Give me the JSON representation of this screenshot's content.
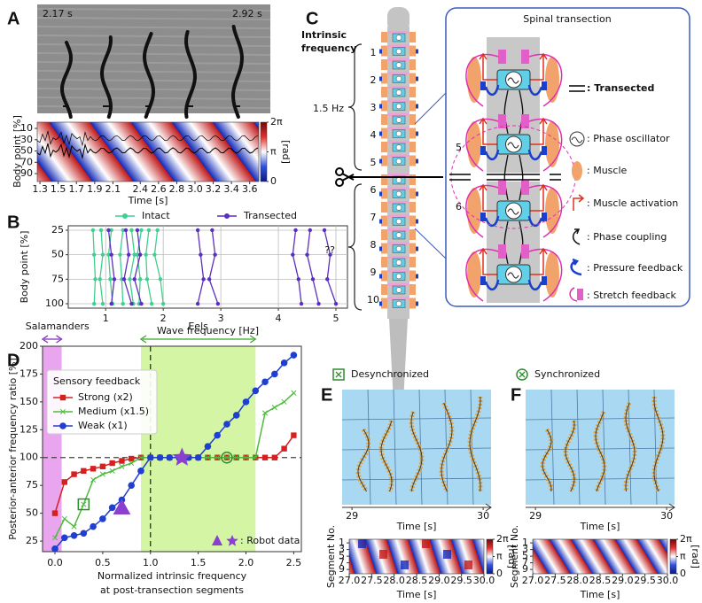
{
  "panel_labels": [
    "A",
    "B",
    "C",
    "D",
    "E",
    "F"
  ],
  "A": {
    "frame_times": [
      "2.17 s",
      "2.92 s"
    ],
    "heatmap": {
      "ylabel": "Body point [%]",
      "yticks": [
        10,
        30,
        50,
        70,
        90
      ],
      "ylim": [
        104,
        -1
      ],
      "xlabel": "Time [s]",
      "xlim": [
        1.27,
        3.7
      ],
      "xticks": [
        1.3,
        1.5,
        1.7,
        1.9,
        2.1,
        2.4,
        2.6,
        2.8,
        {
          "value": 3,
          "label": "3.0"
        },
        3.2,
        3.4,
        3.6
      ],
      "colorbar": {
        "lim": [
          0,
          6.2832
        ],
        "ticks": [
          {
            "value": 6.2832,
            "label": "2π"
          },
          {
            "value": 3.1416,
            "label": "π"
          },
          0
        ],
        "label": "[rad]"
      }
    }
  },
  "chart_data": [
    {
      "type": "line",
      "xlabel": "Wave frequency [Hz]",
      "ylabel": "Body point [%]",
      "xlim": [
        0.35,
        5.2
      ],
      "xticks": [
        1,
        2,
        3,
        4,
        5
      ],
      "ylim": [
        104.5,
        20.5
      ],
      "yticks": [
        25,
        50,
        75,
        100
      ],
      "grid": true,
      "y": [
        25,
        50,
        75,
        100
      ],
      "series": [
        {
          "name": "Intact",
          "color": "#3fcf8e",
          "lines": [
            [
              0.78,
              0.8,
              0.82,
              0.8
            ],
            [
              0.92,
              0.95,
              0.9,
              0.95
            ],
            [
              1.1,
              1.05,
              1.08,
              1.12
            ],
            [
              1.3,
              1.25,
              1.28,
              1.3
            ],
            [
              1.45,
              1.5,
              1.42,
              1.48
            ],
            [
              1.62,
              1.55,
              1.6,
              1.58
            ],
            [
              1.75,
              1.7,
              1.72,
              1.8
            ],
            [
              1.9,
              1.85,
              1.95,
              2.0
            ]
          ]
        },
        {
          "name": "Transected",
          "color": "#5a2fbf",
          "lines": [
            [
              1.05,
              1.1,
              1.15,
              1.1
            ],
            [
              1.35,
              1.4,
              1.32,
              1.45
            ],
            [
              1.55,
              1.6,
              1.5,
              1.62
            ],
            [
              2.6,
              2.65,
              2.7,
              2.6
            ],
            [
              2.85,
              2.9,
              2.8,
              2.95
            ],
            [
              4.3,
              4.25,
              4.35,
              4.4
            ],
            [
              4.55,
              4.5,
              4.6,
              4.7
            ],
            [
              4.8,
              4.9,
              4.85,
              5.0
            ]
          ]
        }
      ]
    },
    {
      "type": "line",
      "legend_title": "Sensory feedback",
      "xlabel_lines": [
        "Normalized intrinsic frequency",
        "at post-transection segments"
      ],
      "ylabel": "Posterior-anterior frequency ratio [%]",
      "xlim": [
        -0.13,
        2.58
      ],
      "xticks": [
        {
          "value": 0,
          "label": "0.0"
        },
        0.5,
        {
          "value": 1,
          "label": "1.0"
        },
        1.5,
        {
          "value": 2,
          "label": "2.0"
        },
        2.5
      ],
      "ylim": [
        15.5,
        200
      ],
      "yticks": [
        25,
        50,
        75,
        100,
        125,
        150,
        175,
        200
      ],
      "ref_x": 1,
      "ref_y": 100,
      "regions": [
        {
          "label": "Salamanders",
          "xrange": [
            -0.13,
            0.07
          ],
          "color": "#e9a6ee",
          "text_color": "#7a2fbf"
        },
        {
          "label": "Eels",
          "xrange": [
            0.9,
            2.1
          ],
          "color": "#d4f5a4",
          "text_color": "#3aa52a"
        }
      ],
      "x": [
        0,
        0.1,
        0.2,
        0.3,
        0.4,
        0.5,
        0.6,
        0.7,
        0.8,
        0.9,
        1.0,
        1.1,
        1.2,
        1.3,
        1.4,
        1.5,
        1.6,
        1.7,
        1.8,
        1.9,
        2.0,
        2.1,
        2.2,
        2.3,
        2.4,
        2.5
      ],
      "series": [
        {
          "name": "Strong (x2)",
          "color": "#d62020",
          "marker": "square",
          "values": [
            50,
            78,
            85,
            88,
            90,
            92,
            95,
            97,
            99,
            100,
            100,
            100,
            100,
            100,
            100,
            100,
            100,
            100,
            100,
            100,
            100,
            100,
            100,
            100,
            108,
            120
          ]
        },
        {
          "name": "Medium (x1.5)",
          "color": "#4cbb3c",
          "marker": "x",
          "values": [
            28,
            45,
            38,
            58,
            80,
            85,
            88,
            92,
            95,
            100,
            100,
            100,
            100,
            100,
            100,
            100,
            100,
            100,
            100,
            100,
            100,
            100,
            140,
            145,
            150,
            158
          ]
        },
        {
          "name": "Weak (x1)",
          "color": "#1f3fd0",
          "marker": "circle",
          "values": [
            18,
            28,
            30,
            32,
            38,
            45,
            55,
            62,
            75,
            88,
            100,
            100,
            100,
            100,
            100,
            100,
            110,
            120,
            130,
            138,
            150,
            160,
            168,
            175,
            185,
            192
          ]
        }
      ],
      "highlights": [
        {
          "marker": "square",
          "x": 0.3,
          "y": 58,
          "color": "#2e8b2e"
        },
        {
          "marker": "circle",
          "x": 1.8,
          "y": 100,
          "color": "#2e8b2e"
        }
      ],
      "robot_data": [
        {
          "marker": "triangle",
          "x": 0.7,
          "y": 55,
          "color": "#8a3fd0"
        },
        {
          "marker": "star",
          "x": 1.33,
          "y": 100,
          "color": "#8a3fd0"
        }
      ],
      "robot_label": ": Robot data"
    }
  ],
  "C": {
    "left_title_lines": [
      "Intrinsic",
      "frequency"
    ],
    "segments": [
      1,
      2,
      3,
      4,
      5,
      6,
      7,
      8,
      9,
      10
    ],
    "front_frequency": "1.5 Hz",
    "rear_frequency": "??",
    "box_title": "Spinal transection",
    "detail_segments": [
      5,
      6
    ],
    "legend": [
      {
        "text": ": Transected",
        "color": "#000000"
      },
      {
        "text": ": Phase oscillator",
        "color": "#222222"
      },
      {
        "text": ": Muscle",
        "color": "#e0501c"
      },
      {
        "text": ": Muscle activation",
        "color": "#e0501c"
      },
      {
        "text": ": Phase coupling",
        "color": "#222222"
      },
      {
        "text": ": Pressure feedback",
        "color": "#1a3fcc"
      },
      {
        "text": ": Stretch feedback",
        "color": "#e030b0"
      }
    ]
  },
  "E": {
    "title": "Desynchronized",
    "snapshot_axis": {
      "xlim": [
        28.925,
        30.06
      ],
      "xticks": [
        29,
        30
      ],
      "xlabel": "Time [s]"
    },
    "heatmap": {
      "ylabel": "Segment No.",
      "yticks": [
        1,
        3,
        5,
        7,
        9
      ],
      "ylim": [
        10.3,
        -0.1
      ],
      "xlim": [
        27,
        30
      ],
      "xlabel": "Time [s]",
      "xticks": [
        {
          "value": 27,
          "label": "27.0"
        },
        27.5,
        {
          "value": 28,
          "label": "28.0"
        },
        28.5,
        {
          "value": 29,
          "label": "29.0"
        },
        29.5,
        {
          "value": 30,
          "label": "30.0"
        }
      ],
      "colorbar": {
        "lim": [
          0,
          6.2832
        ],
        "ticks": [
          {
            "value": 6.2832,
            "label": "2π"
          },
          {
            "value": 3.1416,
            "label": "π"
          },
          0
        ],
        "label": "[rad]"
      }
    }
  },
  "F": {
    "title": "Synchronized",
    "snapshot_axis": {
      "xlim": [
        28.925,
        30.06
      ],
      "xticks": [
        29,
        30
      ],
      "xlabel": "Time [s]"
    },
    "heatmap": {
      "ylabel": "Segment No.",
      "yticks": [
        1,
        3,
        5,
        7,
        9
      ],
      "ylim": [
        10.3,
        -0.1
      ],
      "xlim": [
        27,
        30
      ],
      "xlabel": "Time [s]",
      "xticks": [
        {
          "value": 27,
          "label": "27.0"
        },
        27.5,
        {
          "value": 28,
          "label": "28.0"
        },
        28.5,
        {
          "value": 29,
          "label": "29.0"
        },
        29.5,
        {
          "value": 30,
          "label": "30.0"
        }
      ],
      "colorbar": {
        "lim": [
          0,
          6.2832
        ],
        "ticks": [
          {
            "value": 6.2832,
            "label": "2π"
          },
          {
            "value": 3.1416,
            "label": "π"
          },
          0
        ],
        "label": "[rad]"
      }
    }
  }
}
